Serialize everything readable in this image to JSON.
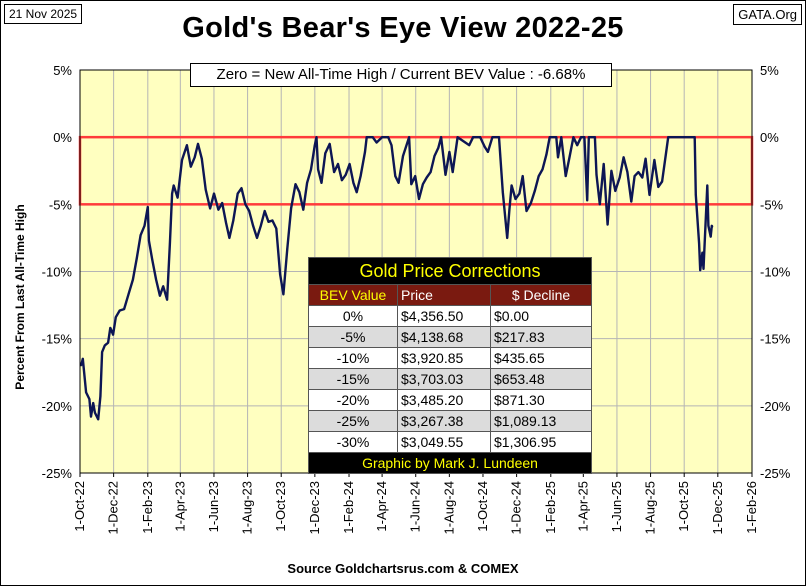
{
  "header": {
    "date": "21 Nov 2025",
    "source_tag": "GATA.Org",
    "title": "Gold's Bear's Eye View 2022-25",
    "subtitle": "Zero = New All-Time High / Current  BEV Value : -6.68%"
  },
  "footer": {
    "source": "Source Goldchartsrus.com & COMEX"
  },
  "table": {
    "title": "Gold Price Corrections",
    "headers": [
      "BEV Value",
      "Price",
      "$ Decline"
    ],
    "rows": [
      [
        "0%",
        "$4,356.50",
        "$0.00"
      ],
      [
        "-5%",
        "$4,138.68",
        "$217.83"
      ],
      [
        "-10%",
        "$3,920.85",
        "$435.65"
      ],
      [
        "-15%",
        "$3,703.03",
        "$653.48"
      ],
      [
        "-20%",
        "$3,485.20",
        "$871.30"
      ],
      [
        "-25%",
        "$3,267.38",
        "$1,089.13"
      ],
      [
        "-30%",
        "$3,049.55",
        "$1,306.95"
      ]
    ],
    "credit": "Graphic by Mark J. Lundeen"
  },
  "colors": {
    "plot_bg": "#ffffc0",
    "line": "#0d1654",
    "band": "#ff3b3b",
    "table_header": "#7a1a10",
    "table_title_text": "#ffff00"
  },
  "chart_data": {
    "type": "line",
    "title": "Gold's Bear's Eye View 2022-25",
    "ylabel": "Percent  From Last  All-Time  High",
    "xlabel": "",
    "ylim": [
      -25,
      5
    ],
    "xlim": [
      "2022-10-01",
      "2026-02-01"
    ],
    "y_ticks": [
      "5%",
      "0%",
      "-5%",
      "-10%",
      "-15%",
      "-20%",
      "-25%"
    ],
    "x_ticks": [
      "1-Oct-22",
      "1-Dec-22",
      "1-Feb-23",
      "1-Apr-23",
      "1-Jun-23",
      "1-Aug-23",
      "1-Oct-23",
      "1-Dec-23",
      "1-Feb-24",
      "1-Apr-24",
      "1-Jun-24",
      "1-Aug-24",
      "1-Oct-24",
      "1-Dec-24",
      "1-Feb-25",
      "1-Apr-25",
      "1-Jun-25",
      "1-Aug-25",
      "1-Oct-25",
      "1-Dec-25",
      "1-Feb-26"
    ],
    "band": {
      "from": -5,
      "to": 0
    },
    "grid": true,
    "series": [
      {
        "values": [
          [
            "2022-10-03",
            -17.0
          ],
          [
            "2022-10-06",
            -16.5
          ],
          [
            "2022-10-12",
            -19.0
          ],
          [
            "2022-10-18",
            -19.5
          ],
          [
            "2022-10-21",
            -20.8
          ],
          [
            "2022-10-25",
            -19.8
          ],
          [
            "2022-10-28",
            -20.5
          ],
          [
            "2022-11-03",
            -21.0
          ],
          [
            "2022-11-07",
            -19.3
          ],
          [
            "2022-11-10",
            -16.0
          ],
          [
            "2022-11-15",
            -15.5
          ],
          [
            "2022-11-21",
            -15.3
          ],
          [
            "2022-11-25",
            -14.2
          ],
          [
            "2022-11-30",
            -14.7
          ],
          [
            "2022-12-05",
            -13.4
          ],
          [
            "2022-12-12",
            -12.9
          ],
          [
            "2022-12-20",
            -12.8
          ],
          [
            "2022-12-28",
            -11.7
          ],
          [
            "2023-01-05",
            -10.6
          ],
          [
            "2023-01-12",
            -9.0
          ],
          [
            "2023-01-19",
            -7.3
          ],
          [
            "2023-01-26",
            -6.6
          ],
          [
            "2023-02-01",
            -5.2
          ],
          [
            "2023-02-03",
            -7.7
          ],
          [
            "2023-02-09",
            -9.1
          ],
          [
            "2023-02-16",
            -10.6
          ],
          [
            "2023-02-23",
            -11.8
          ],
          [
            "2023-03-01",
            -11.1
          ],
          [
            "2023-03-08",
            -12.1
          ],
          [
            "2023-03-13",
            -7.9
          ],
          [
            "2023-03-17",
            -4.2
          ],
          [
            "2023-03-20",
            -3.6
          ],
          [
            "2023-03-27",
            -4.5
          ],
          [
            "2023-04-04",
            -1.7
          ],
          [
            "2023-04-13",
            -0.6
          ],
          [
            "2023-04-20",
            -2.2
          ],
          [
            "2023-04-27",
            -1.5
          ],
          [
            "2023-05-03",
            -0.5
          ],
          [
            "2023-05-10",
            -1.6
          ],
          [
            "2023-05-17",
            -3.9
          ],
          [
            "2023-05-25",
            -5.3
          ],
          [
            "2023-06-01",
            -4.2
          ],
          [
            "2023-06-09",
            -5.4
          ],
          [
            "2023-06-16",
            -4.9
          ],
          [
            "2023-06-23",
            -6.4
          ],
          [
            "2023-06-29",
            -7.5
          ],
          [
            "2023-07-06",
            -6.2
          ],
          [
            "2023-07-14",
            -4.2
          ],
          [
            "2023-07-21",
            -3.8
          ],
          [
            "2023-07-28",
            -5.0
          ],
          [
            "2023-08-04",
            -5.5
          ],
          [
            "2023-08-11",
            -6.6
          ],
          [
            "2023-08-18",
            -7.5
          ],
          [
            "2023-08-25",
            -6.6
          ],
          [
            "2023-09-01",
            -5.5
          ],
          [
            "2023-09-08",
            -6.3
          ],
          [
            "2023-09-15",
            -6.2
          ],
          [
            "2023-09-22",
            -6.8
          ],
          [
            "2023-09-29",
            -10.2
          ],
          [
            "2023-10-05",
            -11.7
          ],
          [
            "2023-10-12",
            -8.3
          ],
          [
            "2023-10-19",
            -5.3
          ],
          [
            "2023-10-27",
            -3.5
          ],
          [
            "2023-11-03",
            -4.1
          ],
          [
            "2023-11-10",
            -5.4
          ],
          [
            "2023-11-17",
            -3.4
          ],
          [
            "2023-11-24",
            -2.4
          ],
          [
            "2023-12-01",
            -0.6
          ],
          [
            "2023-12-04",
            -0.0
          ],
          [
            "2023-12-07",
            -2.4
          ],
          [
            "2023-12-13",
            -3.4
          ],
          [
            "2023-12-20",
            -1.2
          ],
          [
            "2023-12-28",
            -0.5
          ],
          [
            "2024-01-05",
            -2.6
          ],
          [
            "2024-01-12",
            -2.0
          ],
          [
            "2024-01-19",
            -3.2
          ],
          [
            "2024-01-26",
            -2.8
          ],
          [
            "2024-02-02",
            -2.0
          ],
          [
            "2024-02-09",
            -3.4
          ],
          [
            "2024-02-15",
            -4.1
          ],
          [
            "2024-02-22",
            -2.9
          ],
          [
            "2024-03-01",
            -1.1
          ],
          [
            "2024-03-04",
            0.0
          ],
          [
            "2024-03-15",
            0.0
          ],
          [
            "2024-03-22",
            -0.4
          ],
          [
            "2024-04-01",
            0.0
          ],
          [
            "2024-04-12",
            0.0
          ],
          [
            "2024-04-18",
            -0.6
          ],
          [
            "2024-04-25",
            -2.9
          ],
          [
            "2024-05-01",
            -3.4
          ],
          [
            "2024-05-09",
            -1.4
          ],
          [
            "2024-05-20",
            0.0
          ],
          [
            "2024-05-24",
            -3.5
          ],
          [
            "2024-05-31",
            -2.9
          ],
          [
            "2024-06-07",
            -4.6
          ],
          [
            "2024-06-14",
            -3.5
          ],
          [
            "2024-06-21",
            -3.0
          ],
          [
            "2024-06-28",
            -2.6
          ],
          [
            "2024-07-05",
            -1.4
          ],
          [
            "2024-07-12",
            -0.8
          ],
          [
            "2024-07-17",
            0.0
          ],
          [
            "2024-07-25",
            -2.8
          ],
          [
            "2024-08-01",
            -1.1
          ],
          [
            "2024-08-07",
            -2.6
          ],
          [
            "2024-08-16",
            0.0
          ],
          [
            "2024-08-30",
            -0.4
          ],
          [
            "2024-09-06",
            -0.6
          ],
          [
            "2024-09-13",
            0.0
          ],
          [
            "2024-09-26",
            0.0
          ],
          [
            "2024-10-04",
            -0.7
          ],
          [
            "2024-10-10",
            -1.1
          ],
          [
            "2024-10-18",
            0.0
          ],
          [
            "2024-10-30",
            0.0
          ],
          [
            "2024-11-06",
            -4.1
          ],
          [
            "2024-11-14",
            -7.5
          ],
          [
            "2024-11-18",
            -5.4
          ],
          [
            "2024-11-22",
            -3.6
          ],
          [
            "2024-11-29",
            -4.6
          ],
          [
            "2024-12-06",
            -4.2
          ],
          [
            "2024-12-12",
            -2.9
          ],
          [
            "2024-12-19",
            -5.5
          ],
          [
            "2024-12-27",
            -4.9
          ],
          [
            "2025-01-03",
            -4.0
          ],
          [
            "2025-01-10",
            -2.9
          ],
          [
            "2025-01-17",
            -2.4
          ],
          [
            "2025-01-24",
            -1.3
          ],
          [
            "2025-01-30",
            0.0
          ],
          [
            "2025-02-11",
            0.0
          ],
          [
            "2025-02-14",
            -1.5
          ],
          [
            "2025-02-20",
            0.0
          ],
          [
            "2025-02-28",
            -2.9
          ],
          [
            "2025-03-07",
            -1.5
          ],
          [
            "2025-03-14",
            0.0
          ],
          [
            "2025-03-21",
            -0.6
          ],
          [
            "2025-03-28",
            0.0
          ],
          [
            "2025-04-03",
            0.0
          ],
          [
            "2025-04-08",
            -4.7
          ],
          [
            "2025-04-11",
            0.0
          ],
          [
            "2025-04-22",
            0.0
          ],
          [
            "2025-04-25",
            -2.8
          ],
          [
            "2025-05-01",
            -5.0
          ],
          [
            "2025-05-08",
            -2.0
          ],
          [
            "2025-05-15",
            -6.5
          ],
          [
            "2025-05-22",
            -2.5
          ],
          [
            "2025-05-29",
            -4.0
          ],
          [
            "2025-06-06",
            -3.0
          ],
          [
            "2025-06-13",
            -1.5
          ],
          [
            "2025-06-20",
            -2.6
          ],
          [
            "2025-06-27",
            -4.8
          ],
          [
            "2025-07-03",
            -2.9
          ],
          [
            "2025-07-10",
            -2.6
          ],
          [
            "2025-07-17",
            -3.0
          ],
          [
            "2025-07-23",
            -1.6
          ],
          [
            "2025-07-30",
            -4.3
          ],
          [
            "2025-08-08",
            -1.7
          ],
          [
            "2025-08-15",
            -3.7
          ],
          [
            "2025-08-22",
            -3.3
          ],
          [
            "2025-08-29",
            -1.2
          ],
          [
            "2025-09-02",
            0.0
          ],
          [
            "2025-09-30",
            0.0
          ],
          [
            "2025-10-10",
            0.0
          ],
          [
            "2025-10-20",
            0.0
          ],
          [
            "2025-10-22",
            -4.3
          ],
          [
            "2025-10-24",
            -5.5
          ],
          [
            "2025-10-28",
            -7.9
          ],
          [
            "2025-10-30",
            -9.9
          ],
          [
            "2025-11-03",
            -8.6
          ],
          [
            "2025-11-05",
            -9.8
          ],
          [
            "2025-11-07",
            -8.0
          ],
          [
            "2025-11-12",
            -3.6
          ],
          [
            "2025-11-14",
            -6.6
          ],
          [
            "2025-11-18",
            -7.4
          ],
          [
            "2025-11-20",
            -6.6
          ],
          [
            "2025-11-21",
            -6.68
          ]
        ]
      }
    ]
  }
}
